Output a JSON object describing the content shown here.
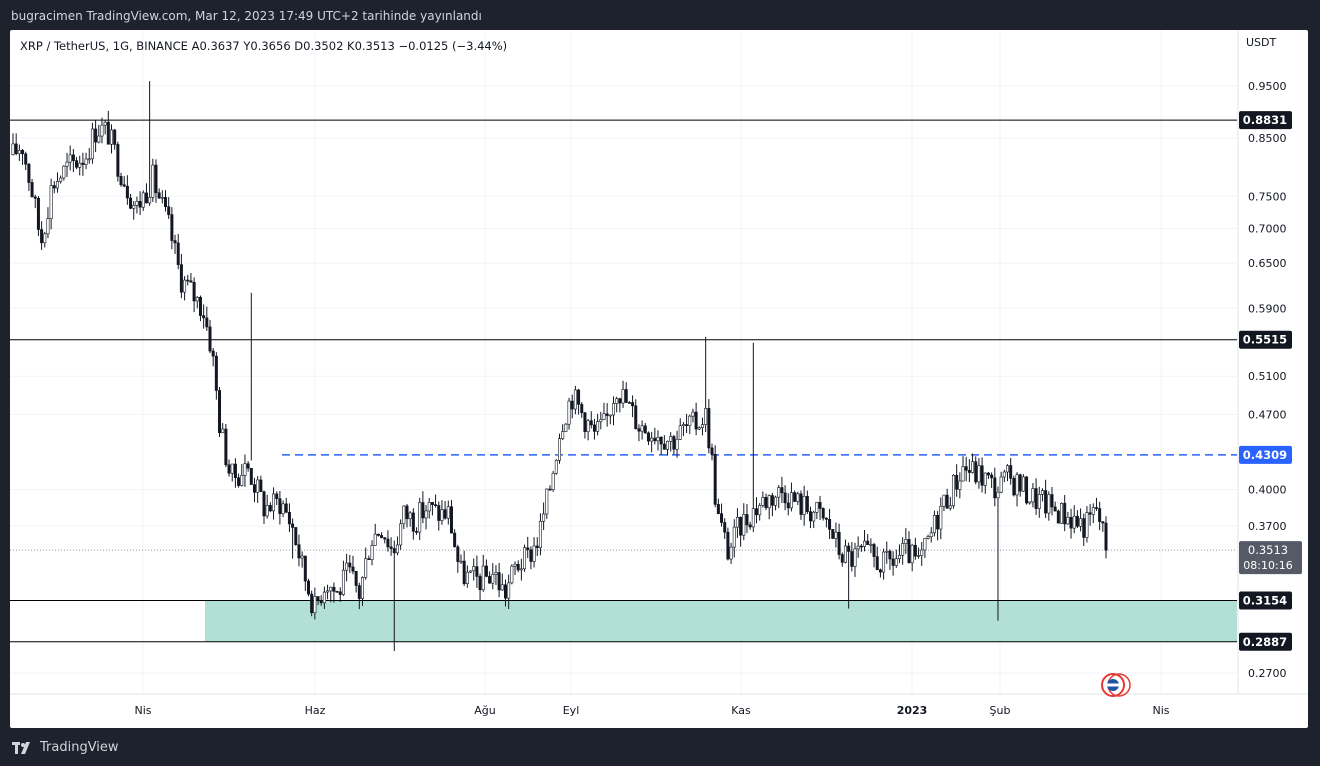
{
  "header": {
    "publish_text": "bugracimen TradingView.com, Mar 12, 2023 17:49 UTC+2 tarihinde yayınlandı"
  },
  "legend": {
    "text": "XRP / TetherUS, 1G, BINANCE  A0.3637  Y0.3656  D0.3502  K0.3513  −0.0125 (−3.44%)"
  },
  "brand": {
    "name": "TradingView"
  },
  "chart_data": {
    "type": "candlestick",
    "symbol": "XRP / TetherUS",
    "interval": "1G",
    "exchange": "BINANCE",
    "unit": "USDT",
    "ohlc": {
      "open": 0.3637,
      "high": 0.3656,
      "low": 0.3502,
      "close": 0.3513,
      "change": -0.0125,
      "change_pct": -3.44
    },
    "y_scale": "log",
    "y_ticks": [
      0.95,
      0.85,
      0.75,
      0.7,
      0.65,
      0.59,
      0.51,
      0.47,
      0.4,
      0.37,
      0.27
    ],
    "y_tick_labels": [
      "0.9500",
      "0.8500",
      "0.7500",
      "0.7000",
      "0.6500",
      "0.5900",
      "0.5100",
      "0.4700",
      "0.4000",
      "0.3700",
      "0.2700"
    ],
    "x_ticks": [
      {
        "label": "Nis",
        "bold": false
      },
      {
        "label": "Haz",
        "bold": false
      },
      {
        "label": "Ağu",
        "bold": false
      },
      {
        "label": "Eyl",
        "bold": false
      },
      {
        "label": "Kas",
        "bold": false
      },
      {
        "label": "2023",
        "bold": true
      },
      {
        "label": "Şub",
        "bold": false
      },
      {
        "label": "Nis",
        "bold": false
      }
    ],
    "levels": [
      {
        "value": 0.8831,
        "label": "0.8831",
        "style": "solid",
        "color": "#000000"
      },
      {
        "value": 0.5515,
        "label": "0.5515",
        "style": "solid",
        "color": "#000000"
      },
      {
        "value": 0.4309,
        "label": "0.4309",
        "style": "dashed",
        "color": "#2962ff"
      },
      {
        "value": 0.3154,
        "label": "0.3154",
        "style": "solid",
        "color": "#000000"
      },
      {
        "value": 0.2887,
        "label": "0.2887",
        "style": "solid",
        "color": "#000000"
      }
    ],
    "support_zone": {
      "low": 0.2887,
      "high": 0.3154,
      "color": "#b2dfd6"
    },
    "last_price": {
      "value": 0.3513,
      "label": "0.3513",
      "countdown": "08:10:16",
      "color": "#555a66"
    },
    "anchors": [
      [
        0,
        0.82
      ],
      [
        8,
        0.84
      ],
      [
        18,
        0.75
      ],
      [
        25,
        0.68
      ],
      [
        35,
        0.77
      ],
      [
        50,
        0.8
      ],
      [
        65,
        0.82
      ],
      [
        75,
        0.87
      ],
      [
        85,
        0.86
      ],
      [
        95,
        0.8
      ],
      [
        110,
        0.73
      ],
      [
        125,
        0.78
      ],
      [
        140,
        0.7
      ],
      [
        150,
        0.63
      ],
      [
        160,
        0.61
      ],
      [
        170,
        0.59
      ],
      [
        178,
        0.54
      ],
      [
        185,
        0.46
      ],
      [
        195,
        0.41
      ],
      [
        210,
        0.42
      ],
      [
        225,
        0.385
      ],
      [
        240,
        0.39
      ],
      [
        250,
        0.37
      ],
      [
        260,
        0.335
      ],
      [
        270,
        0.31
      ],
      [
        280,
        0.33
      ],
      [
        290,
        0.32
      ],
      [
        300,
        0.335
      ],
      [
        310,
        0.32
      ],
      [
        320,
        0.36
      ],
      [
        330,
        0.37
      ],
      [
        340,
        0.35
      ],
      [
        350,
        0.38
      ],
      [
        360,
        0.375
      ],
      [
        370,
        0.385
      ],
      [
        380,
        0.38
      ],
      [
        390,
        0.38
      ],
      [
        400,
        0.335
      ],
      [
        410,
        0.33
      ],
      [
        420,
        0.33
      ],
      [
        430,
        0.335
      ],
      [
        440,
        0.32
      ],
      [
        450,
        0.34
      ],
      [
        460,
        0.345
      ],
      [
        470,
        0.36
      ],
      [
        480,
        0.4
      ],
      [
        490,
        0.46
      ],
      [
        500,
        0.49
      ],
      [
        510,
        0.47
      ],
      [
        520,
        0.45
      ],
      [
        530,
        0.46
      ],
      [
        540,
        0.5
      ],
      [
        550,
        0.48
      ],
      [
        560,
        0.46
      ],
      [
        570,
        0.455
      ],
      [
        580,
        0.45
      ],
      [
        590,
        0.445
      ],
      [
        600,
        0.455
      ],
      [
        610,
        0.46
      ],
      [
        620,
        0.47
      ],
      [
        625,
        0.43
      ],
      [
        630,
        0.38
      ],
      [
        640,
        0.35
      ],
      [
        650,
        0.37
      ],
      [
        660,
        0.38
      ],
      [
        670,
        0.39
      ],
      [
        680,
        0.395
      ],
      [
        690,
        0.4
      ],
      [
        700,
        0.39
      ],
      [
        710,
        0.385
      ],
      [
        720,
        0.38
      ],
      [
        730,
        0.37
      ],
      [
        740,
        0.35
      ],
      [
        750,
        0.345
      ],
      [
        760,
        0.35
      ],
      [
        770,
        0.345
      ],
      [
        780,
        0.34
      ],
      [
        790,
        0.345
      ],
      [
        800,
        0.35
      ],
      [
        810,
        0.34
      ],
      [
        820,
        0.36
      ],
      [
        830,
        0.385
      ],
      [
        840,
        0.4
      ],
      [
        850,
        0.42
      ],
      [
        860,
        0.415
      ],
      [
        870,
        0.41
      ],
      [
        880,
        0.4
      ],
      [
        890,
        0.41
      ],
      [
        900,
        0.405
      ],
      [
        910,
        0.395
      ],
      [
        920,
        0.39
      ],
      [
        930,
        0.385
      ],
      [
        940,
        0.38
      ],
      [
        950,
        0.375
      ],
      [
        960,
        0.37
      ],
      [
        970,
        0.385
      ],
      [
        975,
        0.365
      ],
      [
        978,
        0.3513
      ]
    ]
  }
}
